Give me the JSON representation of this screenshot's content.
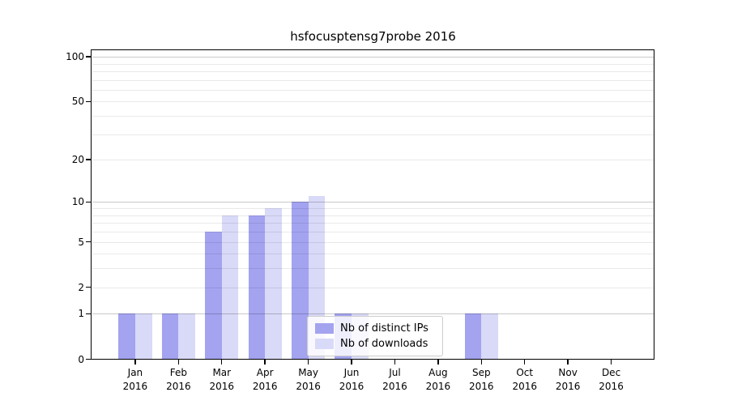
{
  "chart_data": {
    "type": "bar",
    "title": "hsfocusptensg7probe 2016",
    "year_label": "2016",
    "categories": [
      "Jan",
      "Feb",
      "Mar",
      "Apr",
      "May",
      "Jun",
      "Jul",
      "Aug",
      "Sep",
      "Oct",
      "Nov",
      "Dec"
    ],
    "series": [
      {
        "name": "Nb of distinct IPs",
        "color": "#a3a3f0",
        "values": [
          1,
          1,
          6,
          8,
          10,
          1,
          null,
          null,
          1,
          null,
          null,
          null
        ]
      },
      {
        "name": "Nb of downloads",
        "color": "#d9d9f8",
        "values": [
          1,
          1,
          8,
          9,
          11,
          1,
          null,
          null,
          1,
          null,
          null,
          null
        ]
      }
    ],
    "xlabel": "",
    "ylabel": "",
    "y_scale": "log1p",
    "ylim": [
      0,
      110
    ],
    "y_ticks": [
      100,
      50,
      20,
      10,
      5,
      2,
      1,
      0
    ],
    "y_major_gridlines": [
      1,
      10,
      100
    ],
    "y_minor_gridlines": [
      2,
      3,
      4,
      5,
      6,
      7,
      8,
      9,
      20,
      30,
      40,
      50,
      60,
      70,
      80,
      90
    ],
    "grid": true,
    "legend_position": "lower-center"
  },
  "colors": {
    "distinct_ips": "#a3a3f0",
    "downloads": "#d9d9f8",
    "axis": "#000000",
    "grid_minor": "#e9e9e9",
    "grid_major": "#c9c9c9",
    "background": "#ffffff"
  }
}
